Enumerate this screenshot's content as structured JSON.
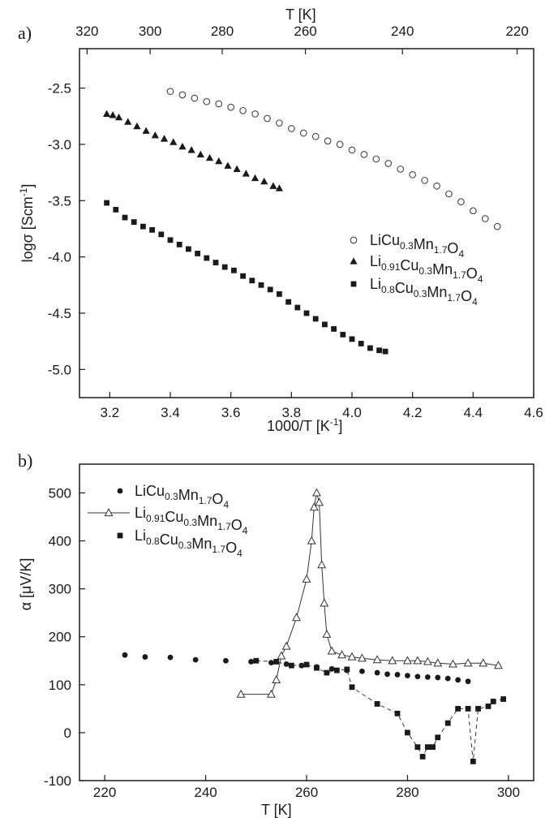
{
  "chart_data": [
    {
      "type": "scatter",
      "panel_label": "a)",
      "xlabel": "1000/T [K",
      "xlabel_sup": "-1",
      "xlabel_end": "]",
      "ylabel": "logσ [Scm",
      "ylabel_sup": "-1",
      "ylabel_end": "]",
      "top_axis_label": "T [K]",
      "xlim": [
        3.1,
        4.6
      ],
      "ylim": [
        -5.25,
        -2.15
      ],
      "x_ticks": [
        "3.2",
        "3.4",
        "3.6",
        "3.8",
        "4.0",
        "4.2",
        "4.4",
        "4.6"
      ],
      "y_ticks": [
        "-2.5",
        "-3.0",
        "-3.5",
        "-4.0",
        "-4.5",
        "-5.0"
      ],
      "top_ticks": [
        "320",
        "300",
        "280",
        "260",
        "240",
        "220"
      ],
      "legend_position": "lower-right",
      "series": [
        {
          "name_parts": [
            [
              "Li",
              ""
            ],
            [
              "Cu",
              "0.3"
            ],
            [
              "Mn",
              "1.7"
            ],
            [
              "O",
              "4"
            ]
          ],
          "marker": "open-circle",
          "x": [
            3.4,
            3.44,
            3.48,
            3.52,
            3.56,
            3.6,
            3.64,
            3.68,
            3.72,
            3.76,
            3.8,
            3.84,
            3.88,
            3.92,
            3.96,
            4.0,
            4.04,
            4.08,
            4.12,
            4.16,
            4.2,
            4.24,
            4.28,
            4.32,
            4.36,
            4.4,
            4.44,
            4.48
          ],
          "y": [
            -2.53,
            -2.56,
            -2.59,
            -2.62,
            -2.64,
            -2.67,
            -2.7,
            -2.73,
            -2.77,
            -2.81,
            -2.86,
            -2.9,
            -2.93,
            -2.97,
            -3.0,
            -3.05,
            -3.09,
            -3.13,
            -3.17,
            -3.22,
            -3.27,
            -3.32,
            -3.37,
            -3.44,
            -3.51,
            -3.59,
            -3.66,
            -3.73
          ]
        },
        {
          "name_parts": [
            [
              "Li",
              "0.91"
            ],
            [
              "Cu",
              "0.3"
            ],
            [
              "Mn",
              "1.7"
            ],
            [
              "O",
              "4"
            ]
          ],
          "marker": "filled-triangle",
          "x": [
            3.19,
            3.21,
            3.23,
            3.26,
            3.29,
            3.32,
            3.35,
            3.38,
            3.41,
            3.44,
            3.47,
            3.5,
            3.53,
            3.56,
            3.59,
            3.62,
            3.65,
            3.68,
            3.71,
            3.74,
            3.76
          ],
          "y": [
            -2.73,
            -2.74,
            -2.76,
            -2.8,
            -2.84,
            -2.88,
            -2.92,
            -2.95,
            -2.98,
            -3.02,
            -3.05,
            -3.09,
            -3.12,
            -3.15,
            -3.19,
            -3.22,
            -3.26,
            -3.3,
            -3.33,
            -3.37,
            -3.39
          ]
        },
        {
          "name_parts": [
            [
              "Li",
              "0.8"
            ],
            [
              "Cu",
              "0.3"
            ],
            [
              "Mn",
              "1.7"
            ],
            [
              "O",
              "4"
            ]
          ],
          "marker": "filled-square",
          "x": [
            3.19,
            3.22,
            3.25,
            3.28,
            3.31,
            3.34,
            3.37,
            3.4,
            3.43,
            3.46,
            3.49,
            3.52,
            3.55,
            3.58,
            3.61,
            3.64,
            3.67,
            3.7,
            3.73,
            3.76,
            3.79,
            3.82,
            3.85,
            3.88,
            3.91,
            3.94,
            3.97,
            4.0,
            4.03,
            4.06,
            4.09,
            4.11
          ],
          "y": [
            -3.52,
            -3.58,
            -3.65,
            -3.69,
            -3.73,
            -3.76,
            -3.8,
            -3.85,
            -3.89,
            -3.93,
            -3.97,
            -4.01,
            -4.05,
            -4.09,
            -4.12,
            -4.17,
            -4.21,
            -4.25,
            -4.29,
            -4.33,
            -4.4,
            -4.45,
            -4.5,
            -4.55,
            -4.6,
            -4.64,
            -4.69,
            -4.73,
            -4.77,
            -4.81,
            -4.83,
            -4.84
          ]
        }
      ]
    },
    {
      "type": "scatter",
      "panel_label": "b)",
      "xlabel": "T [K]",
      "ylabel": "α [μV/K]",
      "xlim": [
        215,
        305
      ],
      "ylim": [
        -100,
        560
      ],
      "x_ticks": [
        "220",
        "240",
        "260",
        "280",
        "300"
      ],
      "y_ticks": [
        "500",
        "400",
        "300",
        "200",
        "100",
        "0",
        "-100"
      ],
      "legend_position": "upper-left",
      "series": [
        {
          "name_parts": [
            [
              "Li",
              ""
            ],
            [
              "Cu",
              "0.3"
            ],
            [
              "Mn",
              "1.7"
            ],
            [
              "O",
              "4"
            ]
          ],
          "marker": "filled-circle",
          "x": [
            224,
            228,
            233,
            238,
            244,
            249,
            253,
            256,
            259,
            262,
            265,
            268,
            271,
            274,
            276,
            278,
            280,
            282,
            284,
            286,
            288,
            290,
            292
          ],
          "y": [
            162,
            158,
            157,
            152,
            150,
            148,
            146,
            143,
            140,
            137,
            133,
            130,
            128,
            125,
            122,
            121,
            119,
            117,
            116,
            115,
            113,
            110,
            107
          ]
        },
        {
          "name_parts": [
            [
              "Li",
              "0.91"
            ],
            [
              "Cu",
              "0.3"
            ],
            [
              "Mn",
              "1.7"
            ],
            [
              "O",
              "4"
            ]
          ],
          "marker": "open-triangle-line",
          "x": [
            247,
            253,
            254,
            255,
            256,
            258,
            260,
            261,
            261.5,
            262,
            262.5,
            263,
            263.5,
            264,
            265,
            267,
            269,
            271,
            274,
            277,
            280,
            282,
            284,
            286,
            289,
            292,
            295,
            298
          ],
          "y": [
            80,
            80,
            110,
            160,
            180,
            240,
            320,
            400,
            470,
            500,
            480,
            350,
            270,
            205,
            170,
            162,
            158,
            155,
            152,
            150,
            150,
            150,
            148,
            145,
            143,
            145,
            145,
            140
          ]
        },
        {
          "name_parts": [
            [
              "Li",
              "0.8"
            ],
            [
              "Cu",
              "0.3"
            ],
            [
              "Mn",
              "1.7"
            ],
            [
              "O",
              "4"
            ]
          ],
          "marker": "filled-square-dashed",
          "x": [
            250,
            254,
            257,
            260,
            262,
            264,
            266,
            268,
            269,
            274,
            278,
            280,
            282,
            283,
            284,
            285,
            286,
            288,
            290,
            292,
            293,
            294,
            296,
            297,
            299
          ],
          "y": [
            150,
            148,
            140,
            142,
            135,
            125,
            130,
            132,
            95,
            60,
            40,
            0,
            -30,
            -50,
            -30,
            -30,
            -10,
            20,
            50,
            50,
            -60,
            50,
            55,
            65,
            70
          ]
        }
      ]
    }
  ]
}
